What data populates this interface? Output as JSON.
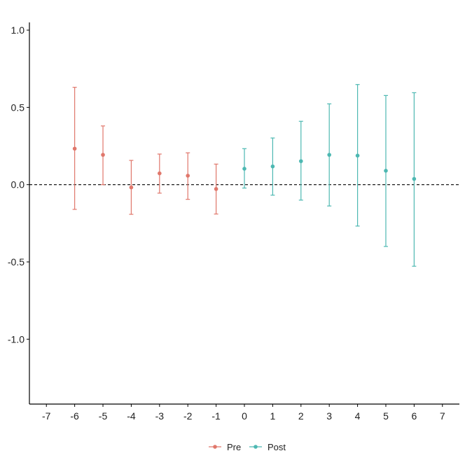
{
  "chart_data": {
    "type": "scatter",
    "title": "",
    "xlabel": "",
    "ylabel": "",
    "xlim": [
      -7.6,
      7.6
    ],
    "ylim": [
      -1.42,
      1.05
    ],
    "x_ticks": [
      -7,
      -6,
      -5,
      -4,
      -3,
      -2,
      -1,
      0,
      1,
      2,
      3,
      4,
      5,
      6,
      7
    ],
    "x_tick_labels": [
      "-7",
      "-6",
      "-5",
      "-4",
      "-3",
      "-2",
      "-1",
      "0",
      "1",
      "2",
      "3",
      "4",
      "5",
      "6",
      "7"
    ],
    "y_ticks": [
      1.0,
      0.5,
      0.0,
      -0.5,
      -1.0
    ],
    "y_tick_labels": [
      "1.0",
      "0.5",
      "0.0",
      "-0.5",
      "-1.0"
    ],
    "grid": false,
    "reference_line": {
      "y": 0.0,
      "style": "dashed",
      "color": "#000000"
    },
    "legend_position": "bottom",
    "series": [
      {
        "name": "Pre",
        "color": "#E0776B",
        "points": [
          {
            "x": -6,
            "y": 0.233,
            "lo": -0.16,
            "hi": 0.63
          },
          {
            "x": -5,
            "y": 0.193,
            "lo": 0.0,
            "hi": 0.38
          },
          {
            "x": -4,
            "y": -0.018,
            "lo": -0.192,
            "hi": 0.157
          },
          {
            "x": -3,
            "y": 0.073,
            "lo": -0.055,
            "hi": 0.198
          },
          {
            "x": -2,
            "y": 0.058,
            "lo": -0.095,
            "hi": 0.206
          },
          {
            "x": -1,
            "y": -0.028,
            "lo": -0.19,
            "hi": 0.133
          }
        ]
      },
      {
        "name": "Post",
        "color": "#4DB8B2",
        "points": [
          {
            "x": 0,
            "y": 0.103,
            "lo": -0.022,
            "hi": 0.233
          },
          {
            "x": 1,
            "y": 0.118,
            "lo": -0.068,
            "hi": 0.302
          },
          {
            "x": 2,
            "y": 0.152,
            "lo": -0.1,
            "hi": 0.41
          },
          {
            "x": 3,
            "y": 0.193,
            "lo": -0.138,
            "hi": 0.523
          },
          {
            "x": 4,
            "y": 0.188,
            "lo": -0.268,
            "hi": 0.648
          },
          {
            "x": 5,
            "y": 0.09,
            "lo": -0.4,
            "hi": 0.577
          },
          {
            "x": 6,
            "y": 0.037,
            "lo": -0.528,
            "hi": 0.595
          }
        ]
      }
    ]
  }
}
